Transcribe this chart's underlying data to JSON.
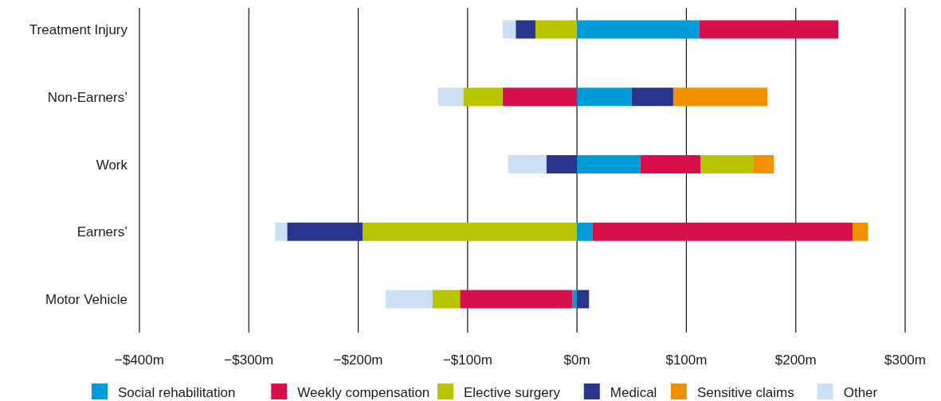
{
  "chart_data": {
    "type": "bar",
    "orientation": "horizontal",
    "stacked": true,
    "categories": [
      "Treatment Injury",
      "Non-Earners’",
      "Work",
      "Earners’",
      "Motor Vehicle"
    ],
    "series": [
      {
        "name": "Social rehabilitation",
        "color": "#009cd9",
        "values": [
          112,
          50,
          58,
          14,
          -4
        ]
      },
      {
        "name": "Weekly compensation",
        "color": "#d7104b",
        "values": [
          127,
          -68,
          55,
          238,
          -103
        ]
      },
      {
        "name": "Elective surgery",
        "color": "#b9c400",
        "values": [
          -38,
          -36,
          48,
          -196,
          -25
        ]
      },
      {
        "name": "Medical",
        "color": "#29348d",
        "values": [
          -18,
          38,
          -28,
          -69,
          11
        ]
      },
      {
        "name": "Sensitive claims",
        "color": "#f29100",
        "values": [
          null,
          86,
          19,
          14,
          null
        ]
      },
      {
        "name": "Other",
        "color": "#cce0f5",
        "values": [
          -12,
          -23,
          -35,
          -11,
          -43
        ]
      }
    ],
    "xlim": [
      -400,
      300
    ],
    "xticks": [
      {
        "value": -400,
        "label": "−$400m"
      },
      {
        "value": -300,
        "label": "−$300m"
      },
      {
        "value": -200,
        "label": "−$200m"
      },
      {
        "value": -100,
        "label": "−$100m"
      },
      {
        "value": 0,
        "label": "$0m"
      },
      {
        "value": 100,
        "label": "$100m"
      },
      {
        "value": 200,
        "label": "$200m"
      },
      {
        "value": 300,
        "label": "$300m"
      }
    ],
    "grid": "x",
    "legend": "bottom"
  }
}
